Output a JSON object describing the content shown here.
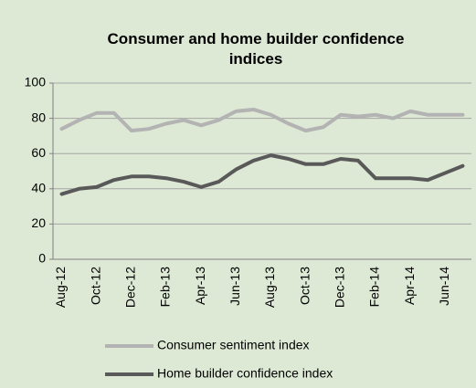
{
  "chart_data": {
    "type": "line",
    "title": "Consumer and home builder confidence indices",
    "categories": [
      "Aug-12",
      null,
      "Oct-12",
      null,
      "Dec-12",
      null,
      "Feb-13",
      null,
      "Apr-13",
      null,
      "Jun-13",
      null,
      "Aug-13",
      null,
      "Oct-13",
      null,
      "Dec-13",
      null,
      "Feb-14",
      null,
      "Apr-14",
      null,
      "Jun-14",
      null
    ],
    "series": [
      {
        "name": "Consumer sentiment index",
        "color": "#b3b3b3",
        "values": [
          74,
          79,
          83,
          83,
          73,
          74,
          77,
          79,
          76,
          79,
          84,
          85,
          82,
          77,
          73,
          75,
          82,
          81,
          82,
          80,
          84,
          82,
          82,
          82
        ]
      },
      {
        "name": "Home builder confidence index",
        "color": "#595959",
        "values": [
          37,
          40,
          41,
          45,
          47,
          47,
          46,
          44,
          41,
          44,
          51,
          56,
          59,
          57,
          54,
          54,
          57,
          56,
          46,
          46,
          46,
          45,
          49,
          53
        ]
      }
    ],
    "ylim": [
      0,
      100
    ],
    "yticks": [
      0,
      20,
      40,
      60,
      80,
      100
    ],
    "grid": true
  }
}
